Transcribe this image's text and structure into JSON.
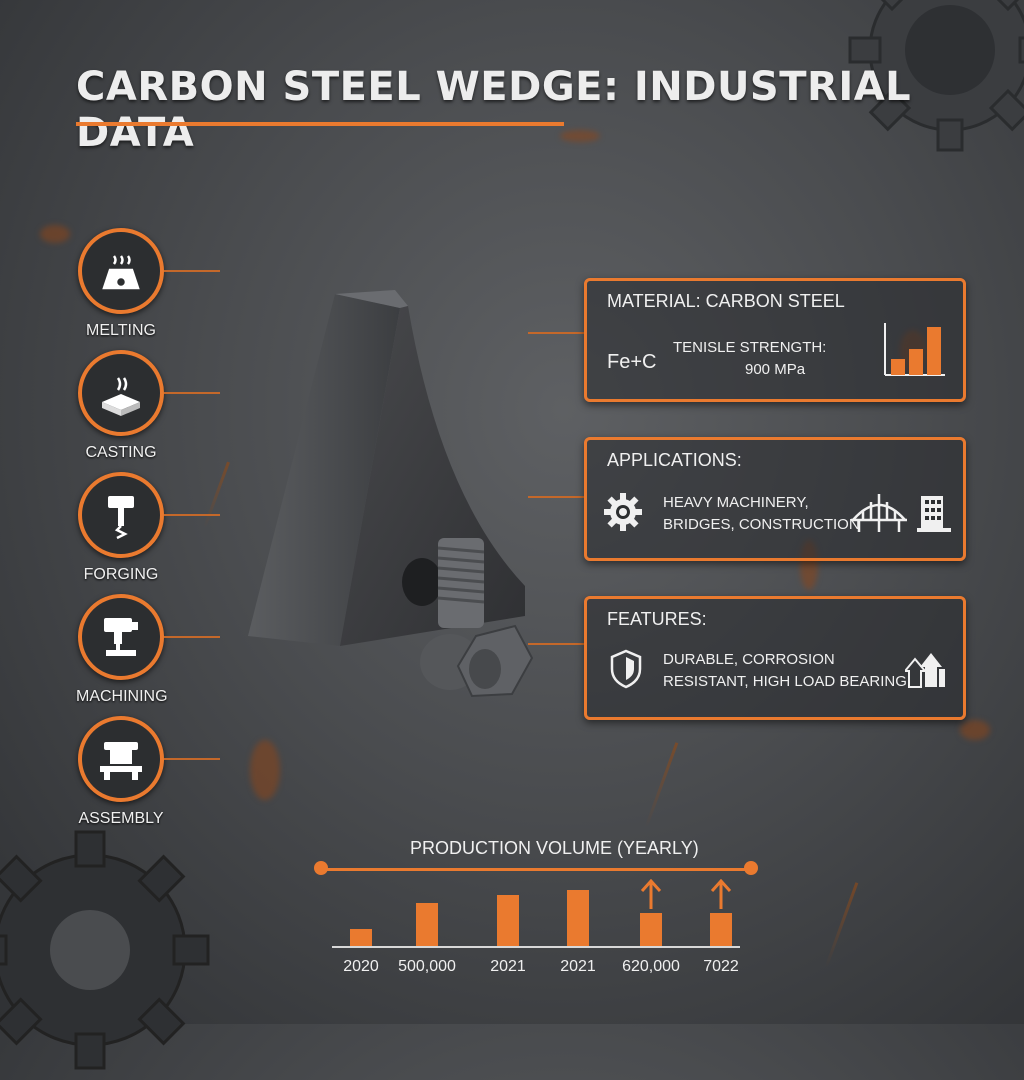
{
  "title": "CARBON STEEL WEDGE: INDUSTRIAL DATA",
  "process_steps": [
    {
      "label": "MELTING",
      "icon": "furnace-icon"
    },
    {
      "label": "CASTING",
      "icon": "mold-icon"
    },
    {
      "label": "FORGING",
      "icon": "hammer-icon"
    },
    {
      "label": "MACHINING",
      "icon": "lathe-icon"
    },
    {
      "label": "ASSEMBLY",
      "icon": "assembly-icon"
    }
  ],
  "material_panel": {
    "heading": "MATERIAL: CARBON STEEL",
    "formula": "Fe+C",
    "strength_label": "TENISLE STRENGTH:",
    "strength_value": "900 MPa",
    "icon": "bar-chart-icon"
  },
  "applications_panel": {
    "heading": "APPLICATIONS:",
    "line1": "HEAVY MACHINERY,",
    "line2": "BRIDGES, CONSTRUCTION",
    "icons": [
      "gear-icon",
      "bridge-icon",
      "building-icon"
    ]
  },
  "features_panel": {
    "heading": "FEATURES:",
    "line1": "DURABLE, CORROSION",
    "line2": "RESISTANT, HIGH LOAD BEARING",
    "icons": [
      "shield-icon",
      "load-arrows-icon"
    ]
  },
  "colors": {
    "accent": "#ea7a2f",
    "background": "#4a4c4f"
  },
  "chart_data": {
    "type": "bar",
    "title": "PRODUCTION VOLUME (YEARLY)",
    "categories": [
      "2020",
      "500,000",
      "2021",
      "2021",
      "620,000",
      "7022"
    ],
    "values": [
      17,
      43,
      51,
      56,
      33,
      33
    ],
    "arrows": [
      false,
      false,
      false,
      false,
      true,
      true
    ],
    "ylim": [
      0,
      60
    ]
  }
}
